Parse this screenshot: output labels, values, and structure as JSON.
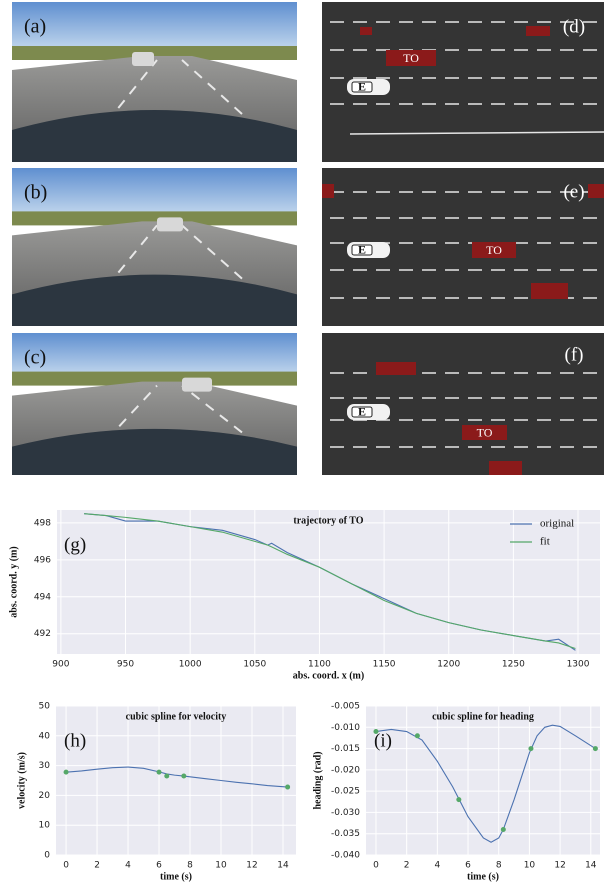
{
  "photo_labels": [
    "(a)",
    "(b)",
    "(c)"
  ],
  "bev_labels": [
    "(d)",
    "(e)",
    "(f)"
  ],
  "target_label": "TO",
  "ego_label": "E",
  "chart_data": [
    {
      "type": "line",
      "title": "trajectory of TO",
      "annotation": "(g)",
      "xlabel": "abs. coord. x (m)",
      "ylabel": "abs. coord. y (m)",
      "x": [
        918,
        935,
        950,
        975,
        1000,
        1025,
        1050,
        1060,
        1063,
        1075,
        1100,
        1125,
        1150,
        1175,
        1200,
        1225,
        1250,
        1275,
        1285,
        1298
      ],
      "series": [
        {
          "name": "original",
          "color": "#4c72b0",
          "values": [
            498.5,
            498.4,
            498.1,
            498.1,
            497.8,
            497.6,
            497.1,
            496.8,
            496.9,
            496.4,
            495.6,
            494.7,
            493.9,
            493.1,
            492.6,
            492.2,
            491.9,
            491.6,
            491.7,
            491.1
          ]
        },
        {
          "name": "fit",
          "color": "#55a868",
          "values": [
            498.5,
            498.4,
            498.3,
            498.1,
            497.8,
            497.5,
            497.0,
            496.8,
            496.7,
            496.3,
            495.6,
            494.7,
            493.8,
            493.1,
            492.6,
            492.2,
            491.9,
            491.6,
            491.5,
            491.2
          ]
        }
      ],
      "xlim": [
        897,
        1317
      ],
      "xticks": [
        900,
        950,
        1000,
        1050,
        1100,
        1150,
        1200,
        1250,
        1300
      ],
      "ylim": [
        490.9,
        498.7
      ],
      "yticks": [
        492,
        494,
        496,
        498
      ],
      "grid": true,
      "legend": "upper right"
    },
    {
      "type": "line",
      "title": "cubic spline for velocity",
      "annotation": "(h)",
      "xlabel": "time (s)",
      "ylabel": "velocity (m/s)",
      "series": [
        {
          "color": "#4c72b0",
          "style": "line",
          "x": [
            0,
            1,
            2,
            3,
            4,
            5,
            6,
            6.5,
            7,
            7.6,
            9,
            10,
            11,
            12,
            13,
            14.3
          ],
          "values": [
            27.8,
            28.2,
            28.8,
            29.3,
            29.5,
            29.1,
            27.9,
            27.2,
            26.8,
            26.5,
            25.6,
            25,
            24.4,
            23.9,
            23.3,
            22.8
          ]
        },
        {
          "color": "#55a868",
          "style": "markers",
          "x": [
            0,
            6,
            6.5,
            7.6,
            14.3
          ],
          "values": [
            27.8,
            27.8,
            26.5,
            26.5,
            22.8
          ]
        }
      ],
      "xlim": [
        -0.65,
        14.84
      ],
      "xticks": [
        0,
        2,
        4,
        6,
        8,
        10,
        12,
        14
      ],
      "ylim": [
        0,
        50
      ],
      "yticks": [
        0,
        10,
        20,
        30,
        40,
        50
      ],
      "grid": true
    },
    {
      "type": "line",
      "title": "cubic spline for heading",
      "annotation": "(i)",
      "xlabel": "time (s)",
      "ylabel": "heading (rad)",
      "series": [
        {
          "color": "#4c72b0",
          "style": "line",
          "x": [
            0,
            1,
            2,
            3,
            4,
            5,
            6,
            7,
            7.5,
            8,
            8.3,
            9,
            10,
            10.5,
            11,
            11.5,
            12,
            13,
            14.3
          ],
          "values": [
            -0.011,
            -0.0105,
            -0.011,
            -0.013,
            -0.018,
            -0.024,
            -0.031,
            -0.036,
            -0.037,
            -0.036,
            -0.034,
            -0.027,
            -0.016,
            -0.012,
            -0.01,
            -0.0095,
            -0.0098,
            -0.012,
            -0.015
          ]
        },
        {
          "color": "#55a868",
          "style": "markers",
          "x": [
            0,
            2.7,
            5.4,
            8.3,
            10.1,
            14.3
          ],
          "values": [
            -0.011,
            -0.012,
            -0.027,
            -0.034,
            -0.015,
            -0.015
          ]
        }
      ],
      "xlim": [
        -0.65,
        14.6
      ],
      "xticks": [
        0,
        2,
        4,
        6,
        8,
        10,
        12,
        14
      ],
      "ylim": [
        -0.04,
        -0.005
      ],
      "yticks": [
        {
          "value": -0.04,
          "label": "-0.040"
        },
        -0.035,
        {
          "value": -0.03,
          "label": "-0.030"
        },
        -0.025,
        {
          "value": -0.02,
          "label": "-0.020"
        },
        -0.015,
        {
          "value": -0.01,
          "label": "-0.010"
        },
        -0.005
      ],
      "grid": true
    }
  ]
}
